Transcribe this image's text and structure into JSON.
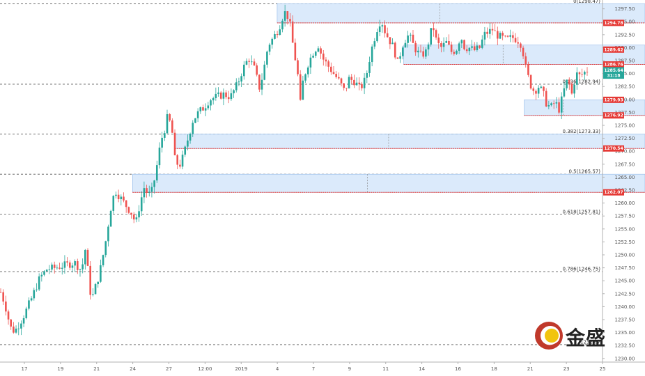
{
  "chart_data": {
    "type": "candlestick",
    "instrument_note": "",
    "x_tick_labels": [
      "17",
      "19",
      "21",
      "24",
      "27",
      "12:00",
      "2019",
      "4",
      "7",
      "9",
      "11",
      "14",
      "16",
      "18",
      "21",
      "23",
      "25"
    ],
    "y_ticks": [
      1230.0,
      1232.5,
      1235.0,
      1237.5,
      1240.0,
      1242.5,
      1245.0,
      1247.5,
      1250.0,
      1252.5,
      1255.0,
      1257.5,
      1260.0,
      1262.5,
      1265.0,
      1267.5,
      1270.0,
      1272.5,
      1275.0,
      1277.5,
      1280.0,
      1282.5,
      1285.0,
      1287.5,
      1290.0,
      1292.5,
      1295.0,
      1297.5
    ],
    "y_tick_labels": [
      "1230.00",
      "1232.50",
      "1235.00",
      "1237.50",
      "1240.00",
      "1242.50",
      "1245.00",
      "1247.50",
      "1250.00",
      "1252.50",
      "1255.00",
      "1257.50",
      "1260.00",
      "1262.50",
      "1265.00",
      "1267.50",
      "1270.00",
      "1272.50",
      "1275.00",
      "1277.50",
      "1280.00",
      "1282.50",
      "1285.00",
      "1287.50",
      "1290.00",
      "1292.50",
      "1295.00",
      "1297.50"
    ],
    "ylim": [
      1229.3,
      1299.2
    ],
    "fib_levels": [
      {
        "label": "0(1298.47)",
        "value": 1298.47
      },
      {
        "label": "0.236(1282.94)",
        "value": 1282.94
      },
      {
        "label": "0.382(1273.33)",
        "value": 1273.33
      },
      {
        "label": "0.5(1265.57)",
        "value": 1265.57
      },
      {
        "label": "0.618(1257.81)",
        "value": 1257.81
      },
      {
        "label": "0.786(1246.75)",
        "value": 1246.75
      },
      {
        "label": "1232.67",
        "value": 1232.67
      }
    ],
    "price_tags": [
      {
        "label": "1294.78",
        "value": 1294.78,
        "color": "#e53935"
      },
      {
        "label": "1289.62",
        "value": 1289.62,
        "color": "#e53935"
      },
      {
        "label": "1286.76",
        "value": 1286.76,
        "color": "#e53935"
      },
      {
        "label": "1285.64",
        "value": 1285.64,
        "color": "#26a69a"
      },
      {
        "label": "31:18",
        "value": 1284.6,
        "color": "#26a69a"
      },
      {
        "label": "1279.93",
        "value": 1279.93,
        "color": "#e53935"
      },
      {
        "label": "1276.92",
        "value": 1276.92,
        "color": "#e53935"
      },
      {
        "label": "1270.54",
        "value": 1270.54,
        "color": "#e53935"
      },
      {
        "label": "1262.07",
        "value": 1262.07,
        "color": "#e53935"
      }
    ],
    "zones": [
      {
        "from_x": 0.46,
        "to_x": 1.0,
        "top": 1298.47,
        "bottom": 1294.78
      },
      {
        "from_x": 0.67,
        "to_x": 1.0,
        "top": 1290.5,
        "bottom": 1286.76
      },
      {
        "from_x": 0.87,
        "to_x": 1.0,
        "top": 1279.93,
        "bottom": 1276.92
      },
      {
        "from_x": 0.29,
        "to_x": 1.0,
        "top": 1273.33,
        "bottom": 1270.54
      },
      {
        "from_x": 0.22,
        "to_x": 1.0,
        "top": 1265.57,
        "bottom": 1262.07
      }
    ],
    "candles": {
      "count": 230,
      "anchors": [
        [
          0,
          1242.8
        ],
        [
          6,
          1240.5
        ],
        [
          14,
          1236.0
        ],
        [
          20,
          1235.2
        ],
        [
          28,
          1237.0
        ],
        [
          34,
          1238.5
        ],
        [
          44,
          1241.5
        ],
        [
          56,
          1245.5
        ],
        [
          66,
          1247.2
        ],
        [
          78,
          1247.5
        ],
        [
          92,
          1248.0
        ],
        [
          106,
          1248.5
        ],
        [
          116,
          1247.0
        ],
        [
          122,
          1251.5
        ],
        [
          128,
          1243.0
        ],
        [
          132,
          1242.0
        ],
        [
          142,
          1246.5
        ],
        [
          150,
          1252.0
        ],
        [
          158,
          1259.0
        ],
        [
          164,
          1262.5
        ],
        [
          172,
          1261.0
        ],
        [
          180,
          1259.5
        ],
        [
          188,
          1258.0
        ],
        [
          194,
          1256.0
        ],
        [
          200,
          1260.0
        ],
        [
          206,
          1263.0
        ],
        [
          212,
          1261.5
        ],
        [
          218,
          1262.5
        ],
        [
          224,
          1267.0
        ],
        [
          230,
          1272.0
        ],
        [
          236,
          1274.5
        ],
        [
          240,
          1277.0
        ],
        [
          246,
          1274.0
        ],
        [
          250,
          1268.5
        ],
        [
          256,
          1267.0
        ],
        [
          262,
          1269.0
        ],
        [
          268,
          1272.0
        ],
        [
          276,
          1276.0
        ],
        [
          284,
          1277.5
        ],
        [
          292,
          1278.5
        ],
        [
          300,
          1280.0
        ],
        [
          310,
          1280.5
        ],
        [
          320,
          1281.0
        ],
        [
          330,
          1280.5
        ],
        [
          340,
          1283.0
        ],
        [
          348,
          1286.0
        ],
        [
          356,
          1288.0
        ],
        [
          364,
          1286.0
        ],
        [
          372,
          1282.0
        ],
        [
          378,
          1286.0
        ],
        [
          384,
          1290.5
        ],
        [
          392,
          1292.0
        ],
        [
          400,
          1294.0
        ],
        [
          406,
          1296.5
        ],
        [
          410,
          1297.0
        ],
        [
          416,
          1294.0
        ],
        [
          420,
          1290.0
        ],
        [
          426,
          1285.5
        ],
        [
          430,
          1279.0
        ],
        [
          434,
          1283.5
        ],
        [
          440,
          1286.5
        ],
        [
          448,
          1289.0
        ],
        [
          456,
          1290.5
        ],
        [
          462,
          1288.0
        ],
        [
          470,
          1286.5
        ],
        [
          478,
          1285.0
        ],
        [
          486,
          1283.5
        ],
        [
          494,
          1281.5
        ],
        [
          500,
          1284.0
        ],
        [
          508,
          1283.5
        ],
        [
          516,
          1282.0
        ],
        [
          524,
          1284.0
        ],
        [
          532,
          1289.5
        ],
        [
          540,
          1293.5
        ],
        [
          546,
          1295.5
        ],
        [
          552,
          1293.0
        ],
        [
          558,
          1291.5
        ],
        [
          564,
          1290.0
        ],
        [
          570,
          1287.0
        ],
        [
          578,
          1291.0
        ],
        [
          586,
          1292.5
        ],
        [
          594,
          1290.0
        ],
        [
          602,
          1288.5
        ],
        [
          610,
          1289.0
        ],
        [
          616,
          1292.0
        ],
        [
          620,
          1294.5
        ],
        [
          626,
          1291.0
        ],
        [
          632,
          1290.0
        ],
        [
          640,
          1291.0
        ],
        [
          648,
          1289.0
        ],
        [
          656,
          1290.0
        ],
        [
          660,
          1292.5
        ],
        [
          666,
          1290.0
        ],
        [
          672,
          1290.0
        ],
        [
          680,
          1289.5
        ],
        [
          688,
          1290.0
        ],
        [
          694,
          1292.5
        ],
        [
          700,
          1293.0
        ],
        [
          706,
          1293.5
        ],
        [
          712,
          1292.5
        ],
        [
          718,
          1292.0
        ],
        [
          726,
          1291.5
        ],
        [
          734,
          1292.0
        ],
        [
          742,
          1291.5
        ],
        [
          748,
          1290.5
        ],
        [
          754,
          1286.0
        ],
        [
          760,
          1283.0
        ],
        [
          766,
          1281.5
        ],
        [
          772,
          1282.5
        ],
        [
          778,
          1281.5
        ],
        [
          784,
          1279.0
        ],
        [
          790,
          1278.5
        ],
        [
          796,
          1279.5
        ],
        [
          802,
          1278.0
        ],
        [
          808,
          1281.5
        ],
        [
          814,
          1284.0
        ],
        [
          820,
          1281.0
        ],
        [
          826,
          1285.0
        ],
        [
          832,
          1284.5
        ],
        [
          838,
          1285.2
        ],
        [
          842,
          1285.6
        ]
      ],
      "color_up": "#26a69a",
      "color_down": "#ef5350"
    }
  },
  "branding": {
    "logo_text": "金盛",
    "logo_colors": {
      "outer": "#c0392b",
      "inner": "#f1c40f"
    }
  }
}
